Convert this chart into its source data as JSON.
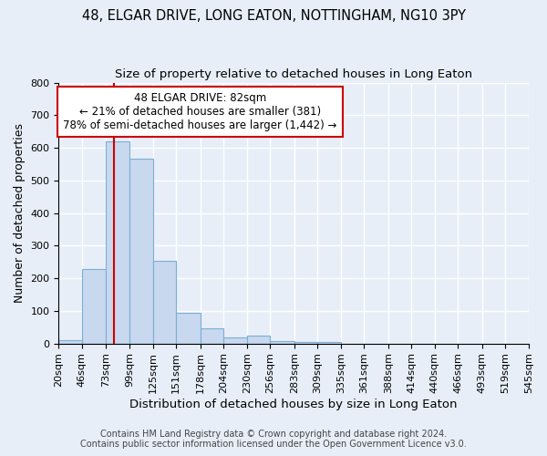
{
  "title1": "48, ELGAR DRIVE, LONG EATON, NOTTINGHAM, NG10 3PY",
  "title2": "Size of property relative to detached houses in Long Eaton",
  "xlabel": "Distribution of detached houses by size in Long Eaton",
  "ylabel": "Number of detached properties",
  "bin_edges": [
    20,
    46,
    73,
    99,
    125,
    151,
    178,
    204,
    230,
    256,
    283,
    309,
    335,
    361,
    388,
    414,
    440,
    466,
    493,
    519,
    545
  ],
  "bar_heights": [
    10,
    228,
    620,
    568,
    253,
    95,
    46,
    20,
    25,
    8,
    5,
    5,
    0,
    0,
    0,
    0,
    0,
    0,
    0,
    0
  ],
  "bar_color": "#c8d8ef",
  "bar_edgecolor": "#7aafd4",
  "property_size": 82,
  "redline_color": "#cc0000",
  "annotation_line1": "48 ELGAR DRIVE: 82sqm",
  "annotation_line2": "← 21% of detached houses are smaller (381)",
  "annotation_line3": "78% of semi-detached houses are larger (1,442) →",
  "annotation_box_color": "#ffffff",
  "annotation_box_edgecolor": "#cc0000",
  "ylim": [
    0,
    800
  ],
  "yticks": [
    0,
    100,
    200,
    300,
    400,
    500,
    600,
    700,
    800
  ],
  "footer1": "Contains HM Land Registry data © Crown copyright and database right 2024.",
  "footer2": "Contains public sector information licensed under the Open Government Licence v3.0.",
  "background_color": "#e8eef8",
  "grid_color": "#ffffff",
  "title1_fontsize": 10.5,
  "title2_fontsize": 9.5,
  "xlabel_fontsize": 9.5,
  "ylabel_fontsize": 9,
  "tick_fontsize": 8,
  "ann_fontsize": 8.5,
  "footer_fontsize": 7
}
